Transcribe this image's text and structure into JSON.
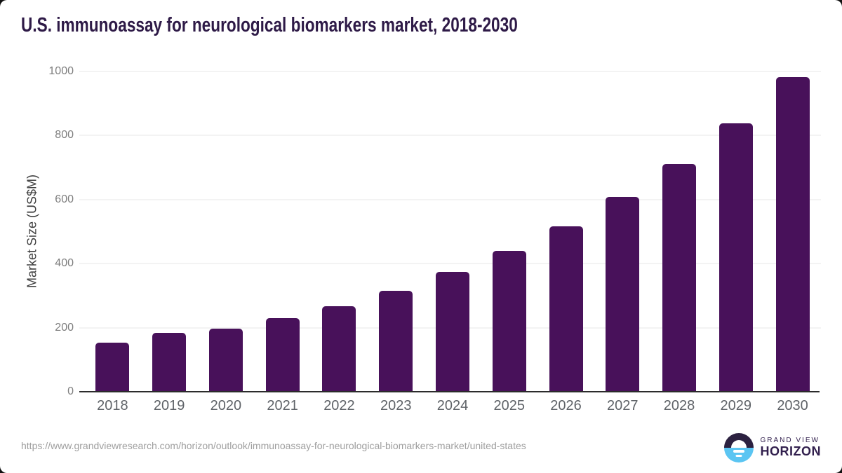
{
  "page": {
    "source_url": "https://www.grandviewresearch.com/horizon/outlook/immunoassay-for-neurological-biomarkers-market/united-states"
  },
  "logo": {
    "line1": "GRAND VIEW",
    "line2": "HORIZON",
    "icon": "horizon-sun-icon"
  },
  "colors": {
    "bar": "#48115A",
    "title_text": "#2E1A47",
    "axis_line": "#2B2B2B",
    "gridline": "#E7E7E7",
    "tick_text": "#7E7E7E",
    "x_label_text": "#5F6368",
    "url_text": "#9E9E9E",
    "logo_dark": "#2C2140",
    "logo_blue": "#5BC5F2"
  },
  "chart_data": {
    "type": "bar",
    "title": "U.S. immunoassay for neurological biomarkers market, 2018-2030",
    "categories": [
      "2018",
      "2019",
      "2020",
      "2021",
      "2022",
      "2023",
      "2024",
      "2025",
      "2026",
      "2027",
      "2028",
      "2029",
      "2030"
    ],
    "values": [
      153,
      183,
      196,
      229,
      268,
      316,
      374,
      439,
      517,
      608,
      712,
      838,
      982
    ],
    "xlabel": "",
    "ylabel": "Market Size (US$M)",
    "ylim": [
      0,
      1000
    ],
    "yticks": [
      0,
      200,
      400,
      600,
      800,
      1000
    ],
    "grid": "horizontal",
    "legend": "none",
    "bar_color": "#48115A"
  }
}
